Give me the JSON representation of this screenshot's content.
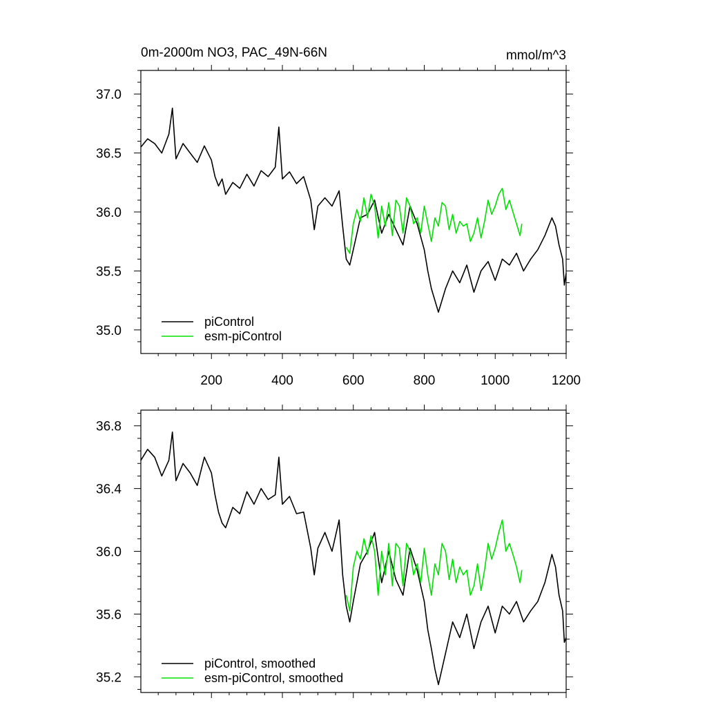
{
  "header": {
    "title": "0m-2000m NO3, PAC_49N-66N",
    "units": "mmol/m^3"
  },
  "colors": {
    "piControl": "#000000",
    "esm_piControl": "#00e000"
  },
  "chart_data": [
    {
      "type": "line",
      "title": "0m-2000m NO3, PAC_49N-66N",
      "units": "mmol/m^3",
      "xlim": [
        1,
        1200
      ],
      "ylim": [
        34.8,
        37.2
      ],
      "xticks": [
        200,
        400,
        600,
        800,
        1000,
        1200
      ],
      "xtick_labels": [
        "200",
        "400",
        "600",
        "800",
        "1000",
        "1200"
      ],
      "yticks": [
        35.0,
        35.5,
        36.0,
        36.5,
        37.0
      ],
      "ytick_labels": [
        "35.0",
        "35.5",
        "36.0",
        "36.5",
        "37.0"
      ],
      "legend_position": "bottom-left",
      "series": [
        {
          "name": "piControl",
          "color": "#000000",
          "points": [
            [
              1,
              36.55
            ],
            [
              20,
              36.62
            ],
            [
              40,
              36.58
            ],
            [
              60,
              36.5
            ],
            [
              80,
              36.66
            ],
            [
              90,
              36.88
            ],
            [
              100,
              36.45
            ],
            [
              120,
              36.58
            ],
            [
              140,
              36.5
            ],
            [
              160,
              36.42
            ],
            [
              180,
              36.56
            ],
            [
              200,
              36.44
            ],
            [
              210,
              36.3
            ],
            [
              220,
              36.22
            ],
            [
              230,
              36.28
            ],
            [
              240,
              36.15
            ],
            [
              260,
              36.25
            ],
            [
              280,
              36.2
            ],
            [
              300,
              36.32
            ],
            [
              320,
              36.22
            ],
            [
              340,
              36.35
            ],
            [
              360,
              36.3
            ],
            [
              380,
              36.38
            ],
            [
              390,
              36.72
            ],
            [
              400,
              36.28
            ],
            [
              420,
              36.34
            ],
            [
              440,
              36.24
            ],
            [
              460,
              36.3
            ],
            [
              480,
              36.1
            ],
            [
              490,
              35.85
            ],
            [
              500,
              36.05
            ],
            [
              520,
              36.12
            ],
            [
              540,
              36.05
            ],
            [
              560,
              36.18
            ],
            [
              570,
              35.88
            ],
            [
              580,
              35.6
            ],
            [
              590,
              35.55
            ],
            [
              600,
              35.68
            ],
            [
              620,
              35.95
            ],
            [
              640,
              35.98
            ],
            [
              660,
              36.1
            ],
            [
              680,
              35.82
            ],
            [
              700,
              35.98
            ],
            [
              720,
              35.85
            ],
            [
              740,
              35.72
            ],
            [
              760,
              36.05
            ],
            [
              780,
              35.9
            ],
            [
              800,
              35.68
            ],
            [
              810,
              35.5
            ],
            [
              820,
              35.35
            ],
            [
              830,
              35.25
            ],
            [
              840,
              35.15
            ],
            [
              860,
              35.35
            ],
            [
              880,
              35.5
            ],
            [
              900,
              35.4
            ],
            [
              920,
              35.55
            ],
            [
              940,
              35.32
            ],
            [
              960,
              35.5
            ],
            [
              980,
              35.58
            ],
            [
              1000,
              35.42
            ],
            [
              1020,
              35.6
            ],
            [
              1040,
              35.55
            ],
            [
              1060,
              35.65
            ],
            [
              1080,
              35.5
            ],
            [
              1100,
              35.6
            ],
            [
              1120,
              35.68
            ],
            [
              1140,
              35.8
            ],
            [
              1160,
              35.95
            ],
            [
              1170,
              35.88
            ],
            [
              1180,
              35.72
            ],
            [
              1190,
              35.6
            ],
            [
              1195,
              35.38
            ],
            [
              1200,
              35.48
            ]
          ]
        },
        {
          "name": "esm-piControl",
          "color": "#00e000",
          "points": [
            [
              580,
              35.7
            ],
            [
              590,
              35.65
            ],
            [
              600,
              35.9
            ],
            [
              610,
              36.02
            ],
            [
              620,
              35.92
            ],
            [
              630,
              36.12
            ],
            [
              640,
              35.95
            ],
            [
              650,
              36.15
            ],
            [
              660,
              36.05
            ],
            [
              670,
              35.78
            ],
            [
              680,
              36.05
            ],
            [
              690,
              35.88
            ],
            [
              700,
              36.08
            ],
            [
              710,
              35.8
            ],
            [
              720,
              36.1
            ],
            [
              730,
              36.05
            ],
            [
              740,
              35.82
            ],
            [
              750,
              36.12
            ],
            [
              760,
              36.05
            ],
            [
              770,
              35.9
            ],
            [
              780,
              35.95
            ],
            [
              790,
              35.82
            ],
            [
              800,
              36.05
            ],
            [
              810,
              35.9
            ],
            [
              820,
              35.75
            ],
            [
              830,
              35.95
            ],
            [
              840,
              35.88
            ],
            [
              850,
              36.08
            ],
            [
              860,
              36.05
            ],
            [
              870,
              35.85
            ],
            [
              880,
              35.98
            ],
            [
              890,
              35.82
            ],
            [
              900,
              35.92
            ],
            [
              910,
              35.88
            ],
            [
              920,
              35.9
            ],
            [
              930,
              35.75
            ],
            [
              940,
              35.82
            ],
            [
              950,
              35.95
            ],
            [
              960,
              35.78
            ],
            [
              970,
              35.92
            ],
            [
              980,
              36.1
            ],
            [
              990,
              35.98
            ],
            [
              1000,
              36.05
            ],
            [
              1010,
              36.15
            ],
            [
              1020,
              36.2
            ],
            [
              1030,
              36.02
            ],
            [
              1040,
              36.1
            ],
            [
              1050,
              36.0
            ],
            [
              1060,
              35.9
            ],
            [
              1070,
              35.8
            ],
            [
              1075,
              35.9
            ]
          ]
        }
      ]
    },
    {
      "type": "line",
      "xlim": [
        1,
        1200
      ],
      "ylim": [
        35.1,
        36.9
      ],
      "xticks": [
        200,
        400,
        600,
        800,
        1000,
        1200
      ],
      "yticks": [
        35.2,
        35.6,
        36.0,
        36.4,
        36.8
      ],
      "ytick_labels": [
        "35.2",
        "35.6",
        "36.0",
        "36.4",
        "36.8"
      ],
      "legend_position": "bottom-left",
      "series": [
        {
          "name": "piControl, smoothed",
          "color": "#000000",
          "points": [
            [
              1,
              36.58
            ],
            [
              20,
              36.65
            ],
            [
              40,
              36.6
            ],
            [
              60,
              36.48
            ],
            [
              80,
              36.58
            ],
            [
              90,
              36.76
            ],
            [
              100,
              36.45
            ],
            [
              120,
              36.56
            ],
            [
              140,
              36.5
            ],
            [
              160,
              36.42
            ],
            [
              180,
              36.6
            ],
            [
              200,
              36.5
            ],
            [
              210,
              36.36
            ],
            [
              220,
              36.25
            ],
            [
              230,
              36.18
            ],
            [
              240,
              36.15
            ],
            [
              260,
              36.28
            ],
            [
              280,
              36.24
            ],
            [
              300,
              36.38
            ],
            [
              320,
              36.3
            ],
            [
              340,
              36.4
            ],
            [
              360,
              36.33
            ],
            [
              380,
              36.36
            ],
            [
              390,
              36.6
            ],
            [
              400,
              36.3
            ],
            [
              420,
              36.35
            ],
            [
              440,
              36.24
            ],
            [
              460,
              36.25
            ],
            [
              480,
              36.02
            ],
            [
              490,
              35.85
            ],
            [
              500,
              36.02
            ],
            [
              520,
              36.12
            ],
            [
              540,
              36.0
            ],
            [
              560,
              36.2
            ],
            [
              570,
              35.85
            ],
            [
              580,
              35.65
            ],
            [
              590,
              35.55
            ],
            [
              600,
              35.68
            ],
            [
              620,
              35.92
            ],
            [
              640,
              36.0
            ],
            [
              660,
              36.12
            ],
            [
              680,
              35.8
            ],
            [
              700,
              36.0
            ],
            [
              720,
              35.82
            ],
            [
              740,
              35.72
            ],
            [
              760,
              36.02
            ],
            [
              780,
              35.88
            ],
            [
              800,
              35.68
            ],
            [
              810,
              35.5
            ],
            [
              820,
              35.38
            ],
            [
              830,
              35.25
            ],
            [
              840,
              35.15
            ],
            [
              860,
              35.35
            ],
            [
              880,
              35.55
            ],
            [
              900,
              35.45
            ],
            [
              920,
              35.6
            ],
            [
              940,
              35.38
            ],
            [
              960,
              35.55
            ],
            [
              980,
              35.65
            ],
            [
              1000,
              35.48
            ],
            [
              1020,
              35.65
            ],
            [
              1040,
              35.6
            ],
            [
              1060,
              35.68
            ],
            [
              1080,
              35.55
            ],
            [
              1100,
              35.62
            ],
            [
              1120,
              35.68
            ],
            [
              1140,
              35.8
            ],
            [
              1160,
              35.98
            ],
            [
              1170,
              35.9
            ],
            [
              1180,
              35.72
            ],
            [
              1190,
              35.62
            ],
            [
              1195,
              35.42
            ],
            [
              1200,
              35.45
            ]
          ]
        },
        {
          "name": "esm-piControl, smoothed",
          "color": "#00e000",
          "points": [
            [
              580,
              35.72
            ],
            [
              590,
              35.62
            ],
            [
              600,
              35.9
            ],
            [
              610,
              36.0
            ],
            [
              620,
              35.95
            ],
            [
              630,
              36.08
            ],
            [
              640,
              35.98
            ],
            [
              650,
              36.1
            ],
            [
              660,
              36.0
            ],
            [
              670,
              35.72
            ],
            [
              680,
              36.0
            ],
            [
              690,
              35.85
            ],
            [
              700,
              36.05
            ],
            [
              710,
              35.78
            ],
            [
              720,
              36.05
            ],
            [
              730,
              36.02
            ],
            [
              740,
              35.78
            ],
            [
              750,
              36.05
            ],
            [
              760,
              36.0
            ],
            [
              770,
              35.85
            ],
            [
              780,
              35.92
            ],
            [
              790,
              35.8
            ],
            [
              800,
              36.02
            ],
            [
              810,
              35.85
            ],
            [
              820,
              35.72
            ],
            [
              830,
              35.92
            ],
            [
              840,
              35.85
            ],
            [
              850,
              36.05
            ],
            [
              860,
              36.0
            ],
            [
              870,
              35.82
            ],
            [
              880,
              35.95
            ],
            [
              890,
              35.8
            ],
            [
              900,
              35.9
            ],
            [
              910,
              35.85
            ],
            [
              920,
              35.88
            ],
            [
              930,
              35.72
            ],
            [
              940,
              35.78
            ],
            [
              950,
              35.92
            ],
            [
              960,
              35.75
            ],
            [
              970,
              35.88
            ],
            [
              980,
              36.05
            ],
            [
              990,
              35.95
            ],
            [
              1000,
              36.02
            ],
            [
              1010,
              36.12
            ],
            [
              1020,
              36.2
            ],
            [
              1030,
              36.0
            ],
            [
              1040,
              36.05
            ],
            [
              1050,
              35.98
            ],
            [
              1060,
              35.9
            ],
            [
              1070,
              35.8
            ],
            [
              1075,
              35.88
            ]
          ]
        }
      ]
    }
  ]
}
